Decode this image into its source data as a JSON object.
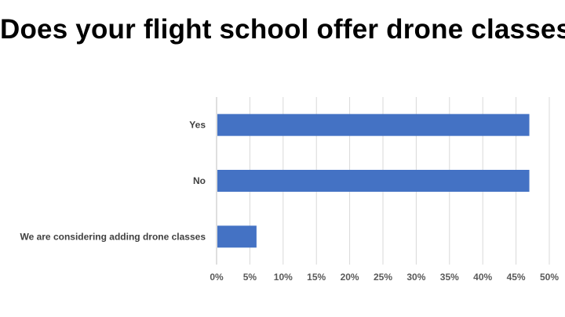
{
  "title": "Does your flight school offer drone classes?",
  "colors": {
    "bar": "#4472C4",
    "grid": "#D9D9D9",
    "axis": "#BFBFBF"
  },
  "chart_data": {
    "type": "bar",
    "orientation": "horizontal",
    "title": "Does your flight school offer drone classes?",
    "xlabel": "",
    "ylabel": "",
    "categories": [
      "Yes",
      "No",
      "We are considering adding drone classes"
    ],
    "values": [
      47,
      47,
      6
    ],
    "value_unit": "%",
    "xlim": [
      0,
      50
    ],
    "xticks": [
      "0%",
      "5%",
      "10%",
      "15%",
      "20%",
      "25%",
      "30%",
      "35%",
      "40%",
      "45%",
      "50%"
    ],
    "grid": true,
    "legend": "none"
  }
}
